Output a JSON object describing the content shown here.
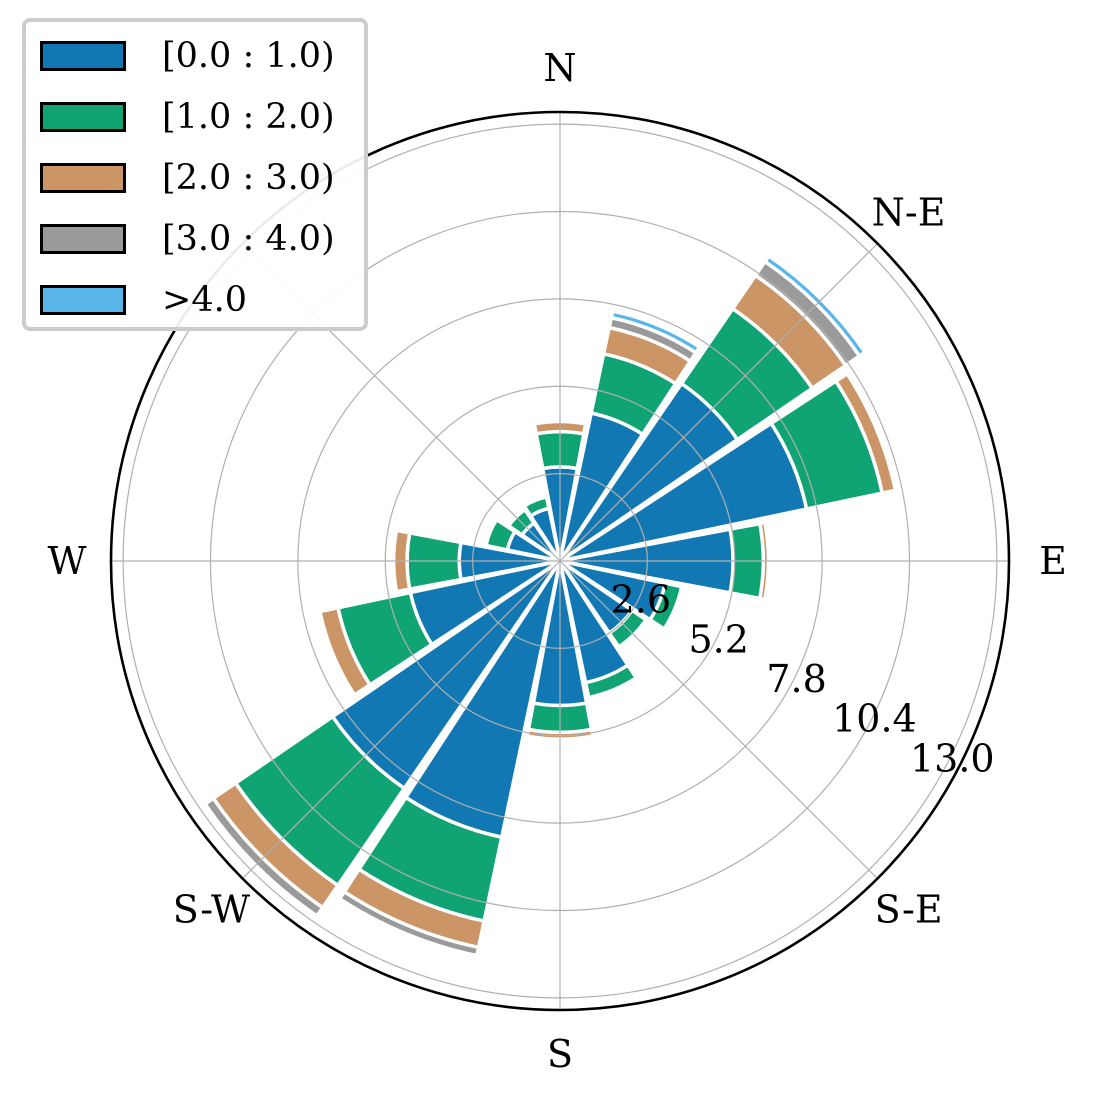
{
  "chart_data": {
    "type": "windrose",
    "title": "",
    "directions": [
      "N",
      "NNE",
      "NE",
      "ENE",
      "E",
      "ESE",
      "SE",
      "SSE",
      "S",
      "SSW",
      "SW",
      "WSW",
      "W",
      "WNW",
      "NW",
      "NNW"
    ],
    "direction_labels": [
      {
        "text": "N",
        "angle": 0
      },
      {
        "text": "N-E",
        "angle": 45
      },
      {
        "text": "E",
        "angle": 90
      },
      {
        "text": "S-E",
        "angle": 135
      },
      {
        "text": "S",
        "angle": 180
      },
      {
        "text": "S-W",
        "angle": 225
      },
      {
        "text": "W",
        "angle": 270
      }
    ],
    "radial_ticks": [
      "2.6",
      "5.2",
      "7.8",
      "10.4",
      "13.0"
    ],
    "radial_tick_values": [
      2.6,
      5.2,
      7.8,
      10.4,
      13.0
    ],
    "rlim": [
      0,
      13.36
    ],
    "grid": true,
    "legend_placement": "top-left",
    "series": [
      {
        "name": "[0.0 : 1.0)",
        "color": "#1178b4",
        "values": [
          2.8,
          4.5,
          6.4,
          7.5,
          5.15,
          3.2,
          2.6,
          3.7,
          4.3,
          8.4,
          8.2,
          4.55,
          3.0,
          1.6,
          1.37,
          1.6
        ]
      },
      {
        "name": "[1.0 : 2.0)",
        "color": "#10a374",
        "values": [
          1.05,
          1.8,
          2.7,
          2.3,
          0.9,
          0.5,
          0.5,
          0.45,
          0.8,
          2.55,
          3.5,
          2.2,
          1.55,
          0.65,
          0.48,
          0.35
        ]
      },
      {
        "name": "[2.0 : 3.0)",
        "color": "#cc9566",
        "values": [
          0.3,
          0.8,
          1.2,
          0.4,
          0.15,
          0,
          0,
          0,
          0.2,
          0.8,
          0.8,
          0.55,
          0.4,
          0,
          0,
          0
        ]
      },
      {
        "name": "[3.0 : 4.0)",
        "color": "#9a9a9a",
        "values": [
          0,
          0.3,
          0.5,
          0,
          0,
          0,
          0,
          0,
          0,
          0.25,
          0.3,
          0,
          0,
          0,
          0,
          0
        ]
      },
      {
        "name": ">4.0",
        "color": "#5ab6e8",
        "values": [
          0,
          0.2,
          0.2,
          0,
          0,
          0,
          0,
          0,
          0,
          0,
          0,
          0,
          0,
          0,
          0,
          0
        ]
      }
    ]
  }
}
